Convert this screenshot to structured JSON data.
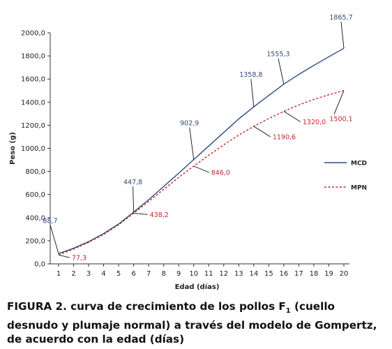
{
  "chart_data": {
    "type": "line",
    "xlabel": "Edad (días)",
    "ylabel": "Peso (g)",
    "xlim": [
      1,
      20
    ],
    "ylim": [
      0,
      2000
    ],
    "x_ticks": [
      "1",
      "2",
      "3",
      "4",
      "5",
      "6",
      "7",
      "8",
      "9",
      "10",
      "11",
      "12",
      "13",
      "14",
      "15",
      "16",
      "17",
      "18",
      "19",
      "20"
    ],
    "y_ticks": [
      "0,0",
      "200,0",
      "400,0",
      "600,0",
      "800,0",
      "1000,0",
      "1200,0",
      "1400,0",
      "1600,0",
      "1800,0",
      "2000,0"
    ],
    "legend_position": "right",
    "grid": false,
    "x": [
      1,
      2,
      3,
      4,
      5,
      6,
      7,
      8,
      9,
      10,
      11,
      12,
      13,
      14,
      15,
      16,
      17,
      18,
      19,
      20
    ],
    "series": [
      {
        "name": "MCD",
        "color": "#2f4b7c",
        "style": "solid",
        "values": [
          88.7,
          135,
          192,
          262,
          345,
          447.8,
          555,
          670,
          785,
          902.9,
          1020,
          1138,
          1255,
          1358.8,
          1458,
          1555.3,
          1640,
          1718,
          1793,
          1865.7
        ],
        "data_labels": [
          {
            "x": 1,
            "label": "88,7"
          },
          {
            "x": 6,
            "label": "447,8"
          },
          {
            "x": 10,
            "label": "902,9"
          },
          {
            "x": 14,
            "label": "1358,8"
          },
          {
            "x": 16,
            "label": "1555,3"
          },
          {
            "x": 20,
            "label": "1865,7"
          }
        ]
      },
      {
        "name": "MPN",
        "color": "#c0282d",
        "style": "dashed",
        "values": [
          77.3,
          128,
          186,
          255,
          338,
          438.2,
          540,
          645,
          748,
          846,
          940,
          1030,
          1115,
          1190.6,
          1258,
          1320,
          1375,
          1423,
          1464,
          1500.1
        ],
        "data_labels": [
          {
            "x": 1,
            "label": "77,3"
          },
          {
            "x": 6,
            "label": "438,2"
          },
          {
            "x": 10,
            "label": "846,0"
          },
          {
            "x": 14,
            "label": "1190,6"
          },
          {
            "x": 16,
            "label": "1320,0"
          },
          {
            "x": 20,
            "label": "1500,1"
          }
        ]
      }
    ]
  },
  "caption": {
    "prefix": "FIGURA 2. curva de crecimiento de los pollos F",
    "subscript": "1",
    "rest": " (cuello desnudo y plumaje normal) a través del modelo de Gompertz, de acuerdo con la edad (días)"
  }
}
